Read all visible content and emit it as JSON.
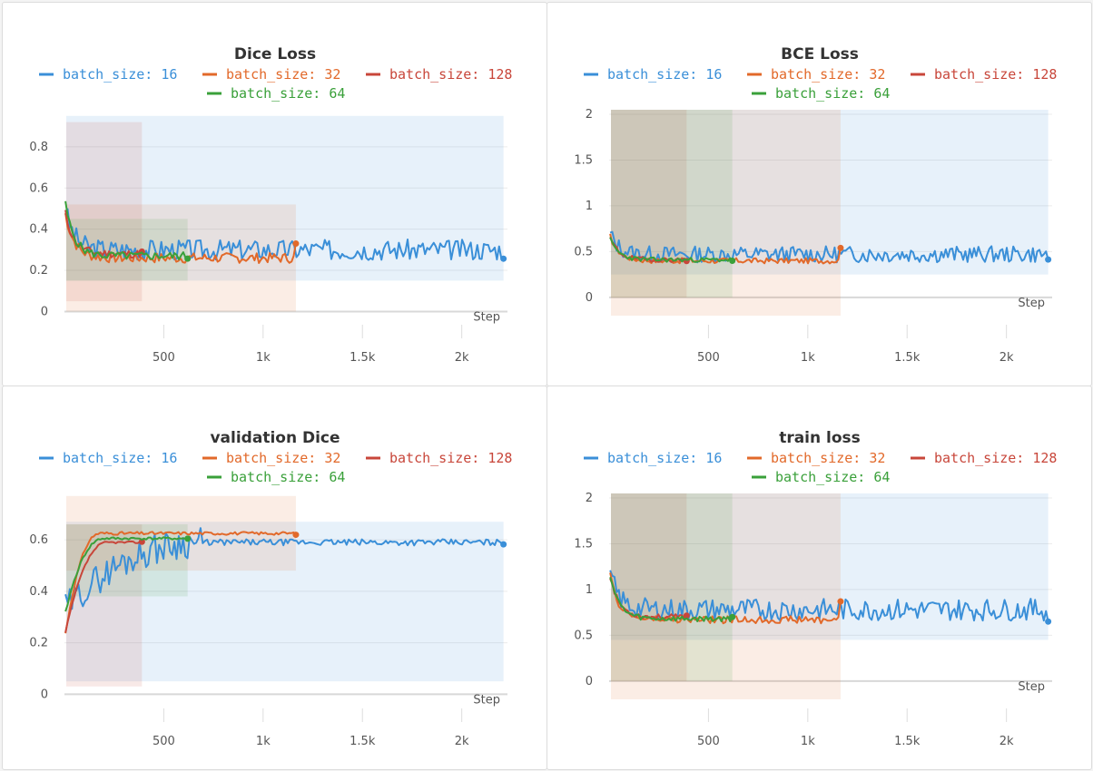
{
  "colors": {
    "bs16": "#3a8fd8",
    "bs32": "#e2692a",
    "bs128": "#c8463a",
    "bs64": "#3aa03a",
    "grid": "#ececec"
  },
  "legend_labels": [
    "batch_size: 16",
    "batch_size: 32",
    "batch_size: 128",
    "batch_size: 64"
  ],
  "chart_data": [
    {
      "type": "line",
      "title": "Dice Loss",
      "xlabel": "Step",
      "xlim": [
        0,
        2230
      ],
      "ylim": [
        -0.02,
        0.98
      ],
      "xticks": [
        500,
        1000,
        1500,
        2000
      ],
      "xtick_labels": [
        "500",
        "1k",
        "1.5k",
        "2k"
      ],
      "yticks": [
        0,
        0.2,
        0.4,
        0.6,
        0.8
      ],
      "ytick_labels": [
        "0",
        "0.2",
        "0.4",
        "0.6",
        "0.8"
      ],
      "series": [
        {
          "name": "batch_size: 16",
          "color_key": "bs16",
          "x_end": 2210,
          "start": 0.52,
          "level": 0.3,
          "noise": 0.05,
          "band": [
            0.15,
            0.95
          ],
          "seed": 3
        },
        {
          "name": "batch_size: 32",
          "color_key": "bs32",
          "x_end": 1165,
          "start": 0.5,
          "level": 0.26,
          "noise": 0.025,
          "band": [
            0.0,
            0.52
          ],
          "seed": 7,
          "end_value": 0.33
        },
        {
          "name": "batch_size: 128",
          "color_key": "bs128",
          "x_end": 390,
          "start": 0.5,
          "level": 0.28,
          "noise": 0.02,
          "band": [
            0.05,
            0.92
          ],
          "seed": 11
        },
        {
          "name": "batch_size: 64",
          "color_key": "bs64",
          "x_end": 620,
          "start": 0.55,
          "level": 0.27,
          "noise": 0.02,
          "band": [
            0.15,
            0.45
          ],
          "seed": 5
        }
      ]
    },
    {
      "type": "line",
      "title": "BCE Loss",
      "xlabel": "Step",
      "xlim": [
        0,
        2230
      ],
      "ylim": [
        -0.2,
        2.05
      ],
      "xticks": [
        500,
        1000,
        1500,
        2000
      ],
      "xtick_labels": [
        "500",
        "1k",
        "1.5k",
        "2k"
      ],
      "yticks": [
        0,
        0.5,
        1,
        1.5,
        2
      ],
      "ytick_labels": [
        "0",
        "0.5",
        "1",
        "1.5",
        "2"
      ],
      "series": [
        {
          "name": "batch_size: 16",
          "color_key": "bs16",
          "x_end": 2210,
          "start": 0.72,
          "level": 0.47,
          "noise": 0.09,
          "band": [
            0.25,
            2.05
          ],
          "seed": 13
        },
        {
          "name": "batch_size: 32",
          "color_key": "bs32",
          "x_end": 1165,
          "start": 0.7,
          "level": 0.4,
          "noise": 0.03,
          "band": [
            -0.2,
            2.05
          ],
          "seed": 17,
          "end_value": 0.54
        },
        {
          "name": "batch_size: 128",
          "color_key": "bs128",
          "x_end": 390,
          "start": 0.68,
          "level": 0.41,
          "noise": 0.025,
          "band": [
            0.0,
            2.05
          ],
          "seed": 19
        },
        {
          "name": "batch_size: 64",
          "color_key": "bs64",
          "x_end": 620,
          "start": 0.66,
          "level": 0.41,
          "noise": 0.025,
          "band": [
            0.0,
            2.05
          ],
          "seed": 23
        }
      ]
    },
    {
      "type": "line",
      "title": "validation Dice",
      "xlabel": "Step",
      "xlim": [
        0,
        2230
      ],
      "ylim": [
        -0.02,
        0.78
      ],
      "xticks": [
        500,
        1000,
        1500,
        2000
      ],
      "xtick_labels": [
        "500",
        "1k",
        "1.5k",
        "2k"
      ],
      "yticks": [
        0,
        0.2,
        0.4,
        0.6
      ],
      "ytick_labels": [
        "0",
        "0.2",
        "0.4",
        "0.6"
      ],
      "series": [
        {
          "name": "batch_size: 16",
          "color_key": "bs16",
          "x_end": 2210,
          "start": 0.33,
          "level": 0.59,
          "noise": 0.012,
          "band": [
            0.05,
            0.67
          ],
          "seed": 29,
          "rise_end": 700,
          "rise_noise": 0.06
        },
        {
          "name": "batch_size: 32",
          "color_key": "bs32",
          "x_end": 1165,
          "start": 0.21,
          "level": 0.625,
          "noise": 0.006,
          "band": [
            0.48,
            0.77
          ],
          "seed": 31,
          "rise_end": 180
        },
        {
          "name": "batch_size: 128",
          "color_key": "bs128",
          "x_end": 390,
          "start": 0.22,
          "level": 0.59,
          "noise": 0.004,
          "band": [
            0.03,
            0.66
          ],
          "seed": 37,
          "rise_end": 220
        },
        {
          "name": "batch_size: 64",
          "color_key": "bs64",
          "x_end": 620,
          "start": 0.3,
          "level": 0.605,
          "noise": 0.005,
          "band": [
            0.38,
            0.66
          ],
          "seed": 41,
          "rise_end": 200
        }
      ]
    },
    {
      "type": "line",
      "title": "train loss",
      "xlabel": "Step",
      "xlim": [
        0,
        2230
      ],
      "ylim": [
        -0.2,
        2.05
      ],
      "xticks": [
        500,
        1000,
        1500,
        2000
      ],
      "xtick_labels": [
        "500",
        "1k",
        "1.5k",
        "2k"
      ],
      "yticks": [
        0,
        0.5,
        1,
        1.5,
        2
      ],
      "ytick_labels": [
        "0",
        "0.5",
        "1",
        "1.5",
        "2"
      ],
      "series": [
        {
          "name": "batch_size: 16",
          "color_key": "bs16",
          "x_end": 2210,
          "start": 1.22,
          "level": 0.78,
          "noise": 0.12,
          "band": [
            0.45,
            2.05
          ],
          "seed": 43,
          "end_value": 0.65
        },
        {
          "name": "batch_size: 32",
          "color_key": "bs32",
          "x_end": 1165,
          "start": 1.2,
          "level": 0.67,
          "noise": 0.04,
          "band": [
            -0.2,
            2.05
          ],
          "seed": 47,
          "end_value": 0.87
        },
        {
          "name": "batch_size: 128",
          "color_key": "bs128",
          "x_end": 390,
          "start": 1.2,
          "level": 0.7,
          "noise": 0.03,
          "band": [
            0.0,
            2.05
          ],
          "seed": 53
        },
        {
          "name": "batch_size: 64",
          "color_key": "bs64",
          "x_end": 620,
          "start": 1.22,
          "level": 0.68,
          "noise": 0.03,
          "band": [
            0.0,
            2.05
          ],
          "seed": 59,
          "end_value": 0.7
        }
      ]
    }
  ]
}
